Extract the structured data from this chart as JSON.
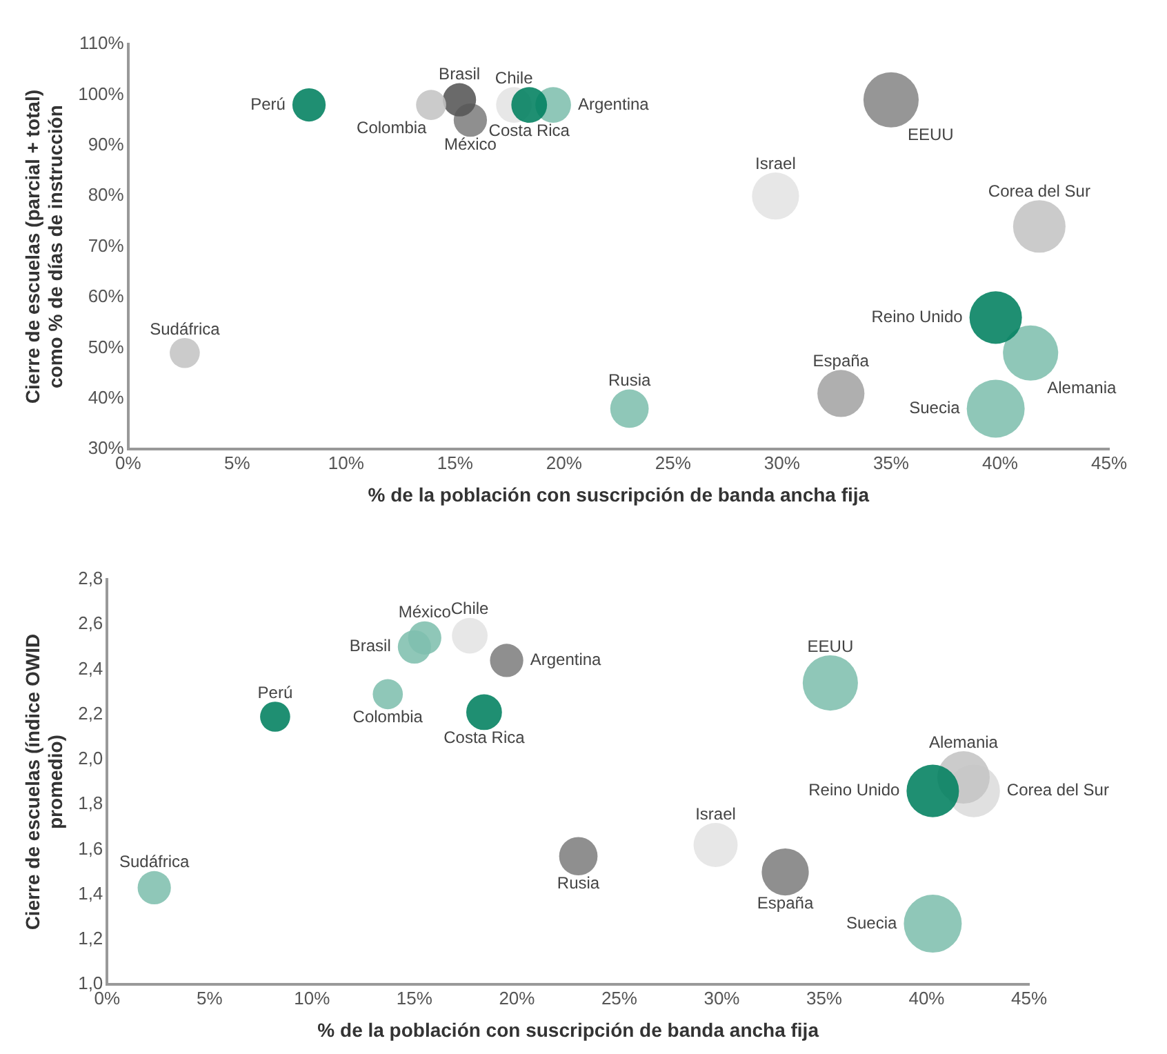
{
  "chart_data": [
    {
      "type": "bubble",
      "xlabel": "% de la población con suscripción de banda ancha fija",
      "ylabel": "Cierre de escuelas (parcial + total)\ncomo % de días de instrucción",
      "grid": false,
      "legend": false,
      "xlim": [
        0,
        45
      ],
      "xticks": [
        {
          "value": 0,
          "label": "0%"
        },
        {
          "value": 5,
          "label": "5%"
        },
        {
          "value": 10,
          "label": "10%"
        },
        {
          "value": 15,
          "label": "15%"
        },
        {
          "value": 20,
          "label": "20%"
        },
        {
          "value": 25,
          "label": "25%"
        },
        {
          "value": 30,
          "label": "30%"
        },
        {
          "value": 35,
          "label": "35%"
        },
        {
          "value": 40,
          "label": "40%"
        },
        {
          "value": 45,
          "label": "45%"
        }
      ],
      "ylim": [
        30,
        110
      ],
      "yticks": [
        {
          "value": 30,
          "label": "30%"
        },
        {
          "value": 40,
          "label": "40%"
        },
        {
          "value": 50,
          "label": "50%"
        },
        {
          "value": 60,
          "label": "60%"
        },
        {
          "value": 70,
          "label": "70%"
        },
        {
          "value": 80,
          "label": "80%"
        },
        {
          "value": 90,
          "label": "90%"
        },
        {
          "value": 100,
          "label": "100%"
        },
        {
          "value": 110,
          "label": "110%"
        }
      ],
      "series": [
        {
          "name": "Perú",
          "color": "#00805f",
          "x": [
            8.3
          ],
          "values": [
            98
          ],
          "sizes": [
            0.33
          ]
        },
        {
          "name": "Colombia",
          "color": "#c4c4c4",
          "x": [
            13.9
          ],
          "values": [
            98
          ],
          "sizes": [
            0.27
          ]
        },
        {
          "name": "Brasil",
          "color": "#555555",
          "x": [
            15.2
          ],
          "values": [
            99
          ],
          "sizes": [
            0.33
          ]
        },
        {
          "name": "México",
          "color": "#808080",
          "x": [
            15.7
          ],
          "values": [
            95
          ],
          "sizes": [
            0.33
          ]
        },
        {
          "name": "Costa Rica",
          "color": "#00805f",
          "x": [
            18.4
          ],
          "values": [
            98
          ],
          "sizes": [
            0.38
          ]
        },
        {
          "name": "Chile",
          "color": "#e4e4e4",
          "x": [
            17.7
          ],
          "values": [
            98
          ],
          "sizes": [
            0.38
          ]
        },
        {
          "name": "Argentina",
          "color": "#7fbfae",
          "x": [
            19.5
          ],
          "values": [
            98
          ],
          "sizes": [
            0.38
          ]
        },
        {
          "name": "EEUU",
          "color": "#888888",
          "x": [
            35
          ],
          "values": [
            99
          ],
          "sizes": [
            0.91
          ]
        },
        {
          "name": "Israel",
          "color": "#e4e4e4",
          "x": [
            29.7
          ],
          "values": [
            80
          ],
          "sizes": [
            0.66
          ]
        },
        {
          "name": "Corea del Sur",
          "color": "#c4c4c4",
          "x": [
            41.8
          ],
          "values": [
            74
          ],
          "sizes": [
            0.82
          ]
        },
        {
          "name": "Reino Unido",
          "color": "#00805f",
          "x": [
            39.8
          ],
          "values": [
            56
          ],
          "sizes": [
            0.82
          ]
        },
        {
          "name": "Alemania",
          "color": "#7fbfae",
          "x": [
            41.4
          ],
          "values": [
            49
          ],
          "sizes": [
            0.91
          ]
        },
        {
          "name": "Suecia",
          "color": "#7fbfae",
          "x": [
            39.8
          ],
          "values": [
            38
          ],
          "sizes": [
            1
          ]
        },
        {
          "name": "España",
          "color": "#a4a4a4",
          "x": [
            32.7
          ],
          "values": [
            41
          ],
          "sizes": [
            0.66
          ]
        },
        {
          "name": "Rusia",
          "color": "#7fbfae",
          "x": [
            23
          ],
          "values": [
            38
          ],
          "sizes": [
            0.44
          ]
        },
        {
          "name": "Sudáfrica",
          "color": "#c4c4c4",
          "x": [
            2.6
          ],
          "values": [
            49
          ],
          "sizes": [
            0.27
          ]
        }
      ]
    },
    {
      "type": "bubble",
      "xlabel": "% de la población con suscripción de banda ancha fija",
      "ylabel": "Cierre de escuelas (índice OWID\npromedio)",
      "grid": false,
      "legend": false,
      "xlim": [
        0,
        45
      ],
      "xticks": [
        {
          "value": 0,
          "label": "0%"
        },
        {
          "value": 5,
          "label": "5%"
        },
        {
          "value": 10,
          "label": "10%"
        },
        {
          "value": 15,
          "label": "15%"
        },
        {
          "value": 20,
          "label": "20%"
        },
        {
          "value": 25,
          "label": "25%"
        },
        {
          "value": 30,
          "label": "30%"
        },
        {
          "value": 35,
          "label": "35%"
        },
        {
          "value": 40,
          "label": "40%"
        },
        {
          "value": 45,
          "label": "45%"
        }
      ],
      "ylim": [
        1,
        2.8
      ],
      "yticks": [
        {
          "value": 1,
          "label": "1,0"
        },
        {
          "value": 1.2,
          "label": "1,2"
        },
        {
          "value": 1.4,
          "label": "1,4"
        },
        {
          "value": 1.6,
          "label": "1,6"
        },
        {
          "value": 1.8,
          "label": "1,8"
        },
        {
          "value": 2,
          "label": "2,0"
        },
        {
          "value": 2.2,
          "label": "2,2"
        },
        {
          "value": 2.4,
          "label": "2,4"
        },
        {
          "value": 2.6,
          "label": "2,6"
        },
        {
          "value": 2.8,
          "label": "2,8"
        }
      ],
      "series": [
        {
          "name": "Perú",
          "color": "#00805f",
          "x": [
            8.2
          ],
          "values": [
            2.19
          ],
          "sizes": [
            0.27
          ]
        },
        {
          "name": "Colombia",
          "color": "#7fbfae",
          "x": [
            13.7
          ],
          "values": [
            2.29
          ],
          "sizes": [
            0.27
          ]
        },
        {
          "name": "Brasil",
          "color": "#7fbfae",
          "x": [
            15
          ],
          "values": [
            2.5
          ],
          "sizes": [
            0.33
          ]
        },
        {
          "name": "México",
          "color": "#7fbfae",
          "x": [
            15.5
          ],
          "values": [
            2.54
          ],
          "sizes": [
            0.33
          ]
        },
        {
          "name": "Chile",
          "color": "#e4e4e4",
          "x": [
            17.7
          ],
          "values": [
            2.55
          ],
          "sizes": [
            0.38
          ]
        },
        {
          "name": "Costa Rica",
          "color": "#00805f",
          "x": [
            18.4
          ],
          "values": [
            2.21
          ],
          "sizes": [
            0.38
          ]
        },
        {
          "name": "Argentina",
          "color": "#808080",
          "x": [
            19.5
          ],
          "values": [
            2.44
          ],
          "sizes": [
            0.33
          ]
        },
        {
          "name": "EEUU",
          "color": "#7fbfae",
          "x": [
            35.3
          ],
          "values": [
            2.34
          ],
          "sizes": [
            0.91
          ]
        },
        {
          "name": "Israel",
          "color": "#e4e4e4",
          "x": [
            29.7
          ],
          "values": [
            1.62
          ],
          "sizes": [
            0.58
          ]
        },
        {
          "name": "Reino Unido",
          "color": "#00805f",
          "x": [
            40.3
          ],
          "values": [
            1.86
          ],
          "sizes": [
            0.82
          ]
        },
        {
          "name": "Alemania",
          "color": "#c4c4c4",
          "x": [
            41.8
          ],
          "values": [
            1.92
          ],
          "sizes": [
            0.82
          ]
        },
        {
          "name": "Suecia",
          "color": "#7fbfae",
          "x": [
            40.3
          ],
          "values": [
            1.27
          ],
          "sizes": [
            1
          ]
        },
        {
          "name": "España",
          "color": "#808080",
          "x": [
            33.1
          ],
          "values": [
            1.5
          ],
          "sizes": [
            0.66
          ]
        },
        {
          "name": "Rusia",
          "color": "#808080",
          "x": [
            23
          ],
          "values": [
            1.57
          ],
          "sizes": [
            0.44
          ]
        },
        {
          "name": "Sudáfrica",
          "color": "#7fbfae",
          "x": [
            2.3
          ],
          "values": [
            1.43
          ],
          "sizes": [
            0.33
          ]
        },
        {
          "name": "Corea del Sur",
          "color": "#dcdcdc",
          "x": [
            42.3
          ],
          "values": [
            1.86
          ],
          "sizes": [
            0.82
          ]
        }
      ]
    }
  ]
}
